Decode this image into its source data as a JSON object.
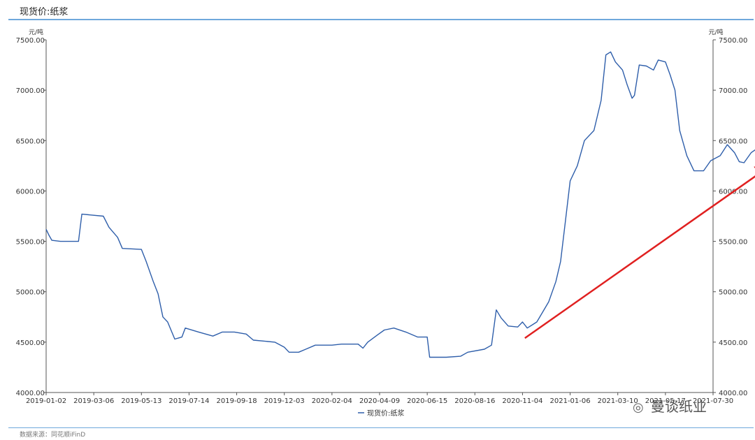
{
  "header": {
    "title": "现货价:纸浆"
  },
  "footer": {
    "source": "数据来源：同花顺iFinD"
  },
  "watermark": {
    "text": "曼谈纸业",
    "icon": "wechat-icon"
  },
  "colors": {
    "series": "#2e5eaa",
    "arrow": "#e02020",
    "axis": "#555555",
    "accent_rule": "#6fa8dc"
  },
  "chart_data": {
    "type": "line",
    "title": "",
    "ylabel_left": "元/吨",
    "ylabel_right": "元/吨",
    "ylim": [
      4000,
      7500
    ],
    "yticks": [
      "4000.00",
      "4500.00",
      "5000.00",
      "5500.00",
      "6000.00",
      "6500.00",
      "7000.00",
      "7500.00"
    ],
    "xticks": [
      "2019-01-02",
      "2019-03-06",
      "2019-05-13",
      "2019-07-14",
      "2019-09-18",
      "2019-12-03",
      "2020-02-04",
      "2020-04-09",
      "2020-06-15",
      "2020-08-16",
      "2020-11-04",
      "2021-01-06",
      "2021-03-10",
      "2021-05-17",
      "2021-07-30"
    ],
    "grid": false,
    "legend": "bottom-center",
    "series": [
      {
        "name": "现货价:纸浆",
        "points": [
          [
            0,
            5620
          ],
          [
            0.06,
            5560
          ],
          [
            0.12,
            5510
          ],
          [
            0.3,
            5500
          ],
          [
            0.68,
            5500
          ],
          [
            0.75,
            5770
          ],
          [
            1.2,
            5750
          ],
          [
            1.32,
            5640
          ],
          [
            1.5,
            5540
          ],
          [
            1.6,
            5430
          ],
          [
            2.0,
            5420
          ],
          [
            2.1,
            5300
          ],
          [
            2.25,
            5100
          ],
          [
            2.35,
            4980
          ],
          [
            2.45,
            4750
          ],
          [
            2.55,
            4700
          ],
          [
            2.7,
            4530
          ],
          [
            2.85,
            4550
          ],
          [
            2.92,
            4640
          ],
          [
            3.2,
            4600
          ],
          [
            3.5,
            4560
          ],
          [
            3.7,
            4600
          ],
          [
            3.95,
            4600
          ],
          [
            4.2,
            4580
          ],
          [
            4.35,
            4520
          ],
          [
            4.8,
            4500
          ],
          [
            5.0,
            4450
          ],
          [
            5.1,
            4400
          ],
          [
            5.3,
            4400
          ],
          [
            5.45,
            4430
          ],
          [
            5.65,
            4470
          ],
          [
            6.0,
            4470
          ],
          [
            6.2,
            4480
          ],
          [
            6.55,
            4480
          ],
          [
            6.65,
            4440
          ],
          [
            6.75,
            4500
          ],
          [
            6.95,
            4570
          ],
          [
            7.1,
            4620
          ],
          [
            7.3,
            4640
          ],
          [
            7.55,
            4600
          ],
          [
            7.8,
            4550
          ],
          [
            8.0,
            4550
          ],
          [
            8.05,
            4350
          ],
          [
            8.4,
            4350
          ],
          [
            8.7,
            4360
          ],
          [
            8.85,
            4400
          ],
          [
            9.2,
            4430
          ],
          [
            9.35,
            4470
          ],
          [
            9.45,
            4820
          ],
          [
            9.55,
            4740
          ],
          [
            9.7,
            4660
          ],
          [
            9.9,
            4650
          ],
          [
            10.0,
            4700
          ],
          [
            10.1,
            4640
          ],
          [
            10.3,
            4700
          ],
          [
            10.4,
            4780
          ],
          [
            10.55,
            4900
          ],
          [
            10.7,
            5100
          ],
          [
            10.8,
            5300
          ],
          [
            10.9,
            5700
          ],
          [
            11.0,
            6100
          ],
          [
            11.15,
            6250
          ],
          [
            11.3,
            6500
          ],
          [
            11.5,
            6600
          ],
          [
            11.65,
            6900
          ],
          [
            11.75,
            7350
          ],
          [
            11.85,
            7380
          ],
          [
            11.95,
            7280
          ],
          [
            12.1,
            7200
          ],
          [
            12.2,
            7050
          ],
          [
            12.3,
            6920
          ],
          [
            12.35,
            6950
          ],
          [
            12.45,
            7250
          ],
          [
            12.6,
            7240
          ],
          [
            12.75,
            7200
          ],
          [
            12.85,
            7300
          ],
          [
            13.0,
            7280
          ],
          [
            13.1,
            7150
          ],
          [
            13.2,
            7000
          ],
          [
            13.3,
            6600
          ],
          [
            13.45,
            6350
          ],
          [
            13.6,
            6200
          ],
          [
            13.8,
            6200
          ],
          [
            13.95,
            6300
          ],
          [
            14.15,
            6350
          ],
          [
            14.3,
            6460
          ],
          [
            14.45,
            6380
          ],
          [
            14.55,
            6290
          ],
          [
            14.65,
            6280
          ],
          [
            14.8,
            6380
          ],
          [
            14.95,
            6430
          ],
          [
            15.05,
            6420
          ],
          [
            15.15,
            6290
          ],
          [
            15.25,
            6270
          ]
        ]
      }
    ],
    "annotations": [
      {
        "type": "arrow",
        "from": [
          10.05,
          4540
        ],
        "to": [
          15.2,
          6250
        ]
      }
    ]
  }
}
